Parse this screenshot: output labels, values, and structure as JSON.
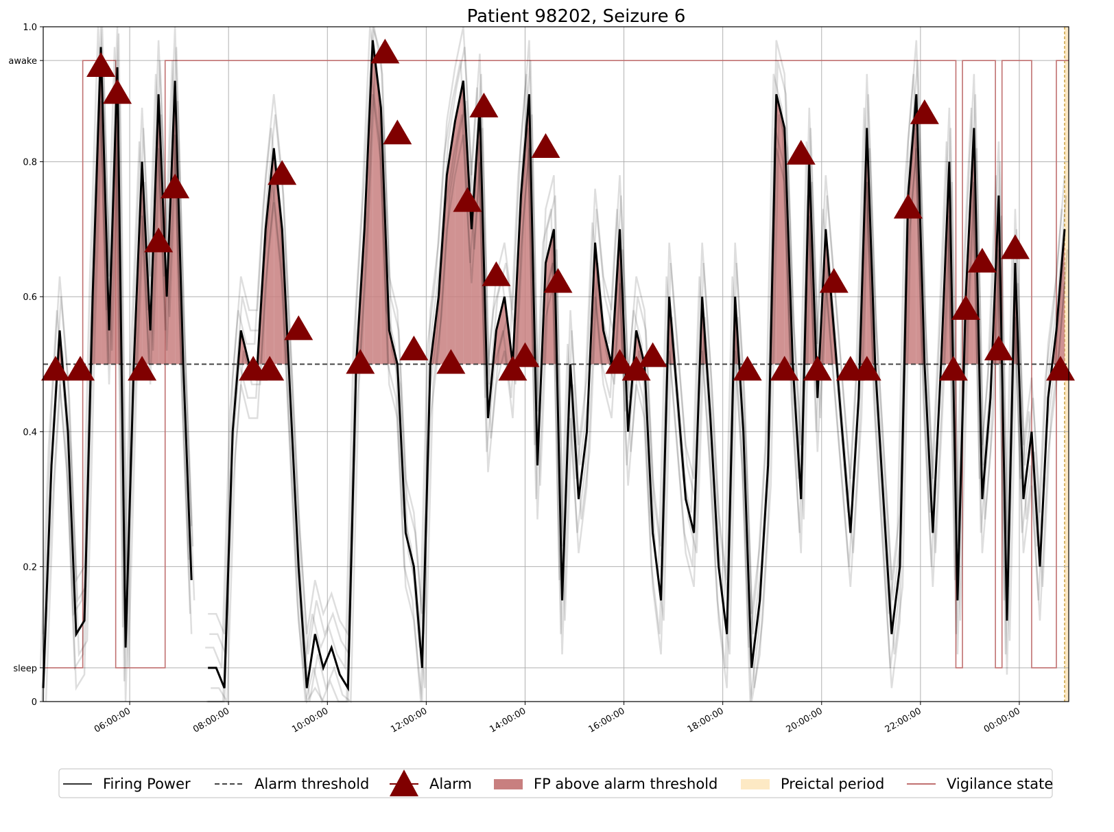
{
  "chart_data": {
    "type": "line",
    "title": "Patient 98202, Seizure 6",
    "xlabel": "",
    "ylabel": "",
    "x_range": [
      "04:15:00",
      "01:00:00"
    ],
    "ylim": [
      0,
      1.0
    ],
    "x_tick_labels": [
      "06:00:00",
      "08:00:00",
      "10:00:00",
      "12:00:00",
      "14:00:00",
      "16:00:00",
      "18:00:00",
      "20:00:00",
      "22:00:00",
      "00:00:00"
    ],
    "y_ticks": [
      0,
      0.2,
      0.4,
      0.6,
      0.8,
      1.0
    ],
    "y_tick_labels": [
      "0",
      "0.2",
      "0.4",
      "0.6",
      "0.8",
      "1.0"
    ],
    "vigilance_labels": {
      "awake": "awake",
      "sleep": "sleep"
    },
    "vigilance_levels": {
      "awake": 0.95,
      "sleep": 0.05
    },
    "alarm_threshold": 0.5,
    "grid": true,
    "legend_position": "bottom",
    "legend": [
      {
        "name": "Firing Power",
        "kind": "line"
      },
      {
        "name": "Alarm threshold",
        "kind": "dashed"
      },
      {
        "name": "Alarm",
        "kind": "marker"
      },
      {
        "name": "FP above alarm threshold",
        "kind": "fill"
      },
      {
        "name": "Preictal period",
        "kind": "fill-preictal"
      },
      {
        "name": "Vigilance state",
        "kind": "vigilance"
      }
    ],
    "colors": {
      "firing_power": "#000000",
      "threshold": "#444444",
      "alarm": "#800000",
      "fill": "#c87f7f",
      "preictal": "#fde9c4",
      "vigilance": "#c07070"
    },
    "preictal_period": [
      "00:55:00",
      "01:00:00"
    ],
    "firing_power": {
      "x": [
        "04:15",
        "04:25",
        "04:35",
        "04:45",
        "04:55",
        "05:05",
        "05:15",
        "05:25",
        "05:35",
        "05:45",
        "05:55",
        "06:05",
        "06:15",
        "06:25",
        "06:35",
        "06:45",
        "06:55",
        "07:05",
        "07:15",
        "07:25",
        "07:35",
        "07:45",
        "07:55",
        "08:05",
        "08:15",
        "08:25",
        "08:35",
        "08:45",
        "08:55",
        "09:05",
        "09:15",
        "09:25",
        "09:35",
        "09:45",
        "09:55",
        "10:05",
        "10:15",
        "10:25",
        "10:35",
        "10:45",
        "10:55",
        "11:05",
        "11:15",
        "11:25",
        "11:35",
        "11:45",
        "11:55",
        "12:05",
        "12:15",
        "12:25",
        "12:35",
        "12:45",
        "12:55",
        "13:05",
        "13:15",
        "13:25",
        "13:35",
        "13:45",
        "13:55",
        "14:05",
        "14:15",
        "14:25",
        "14:35",
        "14:45",
        "14:55",
        "15:05",
        "15:15",
        "15:25",
        "15:35",
        "15:45",
        "15:55",
        "16:05",
        "16:15",
        "16:25",
        "16:35",
        "16:45",
        "16:55",
        "17:05",
        "17:15",
        "17:25",
        "17:35",
        "17:45",
        "17:55",
        "18:05",
        "18:15",
        "18:25",
        "18:35",
        "18:45",
        "18:55",
        "19:05",
        "19:15",
        "19:25",
        "19:35",
        "19:45",
        "19:55",
        "20:05",
        "20:15",
        "20:25",
        "20:35",
        "20:45",
        "20:55",
        "21:05",
        "21:15",
        "21:25",
        "21:35",
        "21:45",
        "21:55",
        "22:05",
        "22:15",
        "22:25",
        "22:35",
        "22:45",
        "22:55",
        "23:05",
        "23:15",
        "23:25",
        "23:35",
        "23:45",
        "23:55",
        "00:05",
        "00:15",
        "00:25",
        "00:35",
        "00:45",
        "00:55"
      ],
      "y": [
        0.02,
        0.35,
        0.55,
        0.4,
        0.1,
        0.12,
        0.6,
        0.97,
        0.55,
        0.94,
        0.08,
        0.5,
        0.8,
        0.55,
        0.9,
        0.6,
        0.92,
        0.5,
        0.18,
        null,
        0.05,
        0.05,
        0.02,
        0.4,
        0.55,
        0.5,
        0.5,
        0.7,
        0.82,
        0.7,
        0.45,
        0.2,
        0.02,
        0.1,
        0.05,
        0.08,
        0.04,
        0.02,
        0.5,
        0.7,
        0.98,
        0.88,
        0.55,
        0.5,
        0.25,
        0.2,
        0.05,
        0.5,
        0.6,
        0.78,
        0.86,
        0.92,
        0.7,
        0.88,
        0.42,
        0.55,
        0.6,
        0.5,
        0.75,
        0.9,
        0.35,
        0.65,
        0.7,
        0.15,
        0.5,
        0.3,
        0.4,
        0.68,
        0.55,
        0.5,
        0.7,
        0.4,
        0.55,
        0.5,
        0.25,
        0.15,
        0.6,
        0.45,
        0.3,
        0.25,
        0.6,
        0.42,
        0.2,
        0.1,
        0.6,
        0.4,
        0.05,
        0.15,
        0.35,
        0.9,
        0.85,
        0.5,
        0.3,
        0.8,
        0.45,
        0.7,
        0.55,
        0.4,
        0.25,
        0.45,
        0.85,
        0.5,
        0.3,
        0.1,
        0.2,
        0.75,
        0.9,
        0.5,
        0.25,
        0.5,
        0.8,
        0.15,
        0.6,
        0.85,
        0.3,
        0.45,
        0.75,
        0.12,
        0.65,
        0.3,
        0.4,
        0.2,
        0.45,
        0.55,
        0.7
      ]
    },
    "alarms": {
      "x": [
        "04:30",
        "05:00",
        "05:25",
        "05:45",
        "06:15",
        "06:35",
        "06:55",
        "08:30",
        "08:50",
        "09:05",
        "09:25",
        "10:40",
        "11:10",
        "11:25",
        "11:45",
        "12:30",
        "12:50",
        "13:10",
        "13:25",
        "13:45",
        "14:00",
        "14:25",
        "14:40",
        "15:55",
        "16:15",
        "16:35",
        "18:30",
        "19:15",
        "19:35",
        "19:55",
        "20:15",
        "20:35",
        "20:55",
        "21:45",
        "22:05",
        "22:40",
        "22:55",
        "23:15",
        "23:35",
        "23:55",
        "00:50"
      ],
      "y": [
        0.49,
        0.49,
        0.94,
        0.9,
        0.49,
        0.68,
        0.76,
        0.49,
        0.49,
        0.78,
        0.55,
        0.5,
        0.96,
        0.84,
        0.52,
        0.5,
        0.74,
        0.88,
        0.63,
        0.49,
        0.51,
        0.82,
        0.62,
        0.5,
        0.49,
        0.51,
        0.49,
        0.49,
        0.81,
        0.49,
        0.62,
        0.49,
        0.49,
        0.73,
        0.87,
        0.49,
        0.58,
        0.65,
        0.52,
        0.67,
        0.49
      ]
    },
    "vigilance_state": {
      "x": [
        "04:15",
        "05:03",
        "05:03",
        "05:43",
        "05:43",
        "06:43",
        "06:43",
        "22:43",
        "22:43",
        "22:51",
        "22:51",
        "23:31",
        "23:31",
        "23:39",
        "23:39",
        "00:15",
        "00:15",
        "00:45",
        "00:45",
        "01:00"
      ],
      "state": [
        "sleep",
        "sleep",
        "awake",
        "awake",
        "sleep",
        "sleep",
        "awake",
        "awake",
        "sleep",
        "sleep",
        "awake",
        "awake",
        "sleep",
        "sleep",
        "awake",
        "awake",
        "sleep",
        "sleep",
        "awake",
        "awake"
      ]
    }
  }
}
